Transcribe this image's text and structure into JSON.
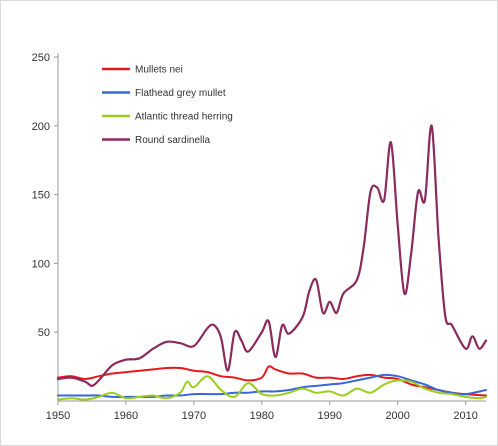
{
  "chart_data": {
    "type": "line",
    "title": "",
    "xlabel": "",
    "ylabel": "",
    "xlim": [
      1950,
      2013
    ],
    "ylim": [
      0,
      250
    ],
    "xticks": [
      1950,
      1960,
      1970,
      1980,
      1990,
      2000,
      2010
    ],
    "yticks": [
      50,
      100,
      150,
      200,
      250
    ],
    "grid": false,
    "legend_position": "top-left",
    "series": [
      {
        "name": "Mullets nei",
        "color": "#e8191e",
        "x": [
          1950,
          1952,
          1954,
          1956,
          1958,
          1960,
          1962,
          1964,
          1966,
          1968,
          1970,
          1972,
          1974,
          1976,
          1978,
          1980,
          1981,
          1982,
          1984,
          1986,
          1988,
          1990,
          1992,
          1994,
          1996,
          1998,
          2000,
          2002,
          2004,
          2006,
          2008,
          2010,
          2013
        ],
        "y": [
          17,
          18,
          16,
          18,
          20,
          21,
          22,
          23,
          24,
          24,
          22,
          21,
          18,
          17,
          15,
          17,
          25,
          23,
          20,
          20,
          17,
          17,
          16,
          18,
          19,
          17,
          16,
          12,
          10,
          8,
          6,
          5,
          4
        ]
      },
      {
        "name": "Flathead grey mullet",
        "color": "#3a66d8",
        "x": [
          1950,
          1952,
          1954,
          1956,
          1958,
          1960,
          1962,
          1964,
          1966,
          1968,
          1970,
          1972,
          1974,
          1976,
          1978,
          1980,
          1982,
          1984,
          1986,
          1988,
          1990,
          1992,
          1994,
          1996,
          1998,
          2000,
          2002,
          2004,
          2006,
          2008,
          2010,
          2013
        ],
        "y": [
          4,
          4,
          4,
          4,
          3,
          3,
          3,
          3,
          4,
          4,
          5,
          5,
          5,
          6,
          6,
          7,
          7,
          8,
          10,
          11,
          12,
          13,
          15,
          17,
          19,
          18,
          15,
          12,
          8,
          6,
          5,
          8
        ]
      },
      {
        "name": "Atlantic thread herring",
        "color": "#9acd1e",
        "x": [
          1950,
          1952,
          1954,
          1956,
          1958,
          1960,
          1962,
          1964,
          1966,
          1968,
          1969,
          1970,
          1972,
          1974,
          1976,
          1978,
          1980,
          1982,
          1984,
          1986,
          1988,
          1990,
          1992,
          1994,
          1996,
          1998,
          2000,
          2002,
          2004,
          2006,
          2008,
          2010,
          2012,
          2013
        ],
        "y": [
          1,
          2,
          1,
          3,
          6,
          2,
          3,
          4,
          2,
          6,
          14,
          10,
          18,
          8,
          3,
          13,
          5,
          4,
          6,
          9,
          6,
          7,
          4,
          9,
          6,
          12,
          15,
          14,
          9,
          6,
          5,
          3,
          2,
          3
        ]
      },
      {
        "name": "Round sardinella",
        "color": "#8c2a5e",
        "x": [
          1950,
          1952,
          1954,
          1955,
          1956,
          1958,
          1960,
          1962,
          1964,
          1966,
          1968,
          1970,
          1972,
          1973,
          1974,
          1975,
          1976,
          1977,
          1978,
          1980,
          1981,
          1982,
          1983,
          1984,
          1986,
          1987,
          1988,
          1989,
          1990,
          1991,
          1992,
          1994,
          1995,
          1996,
          1997,
          1998,
          1999,
          2000,
          2001,
          2002,
          2003,
          2004,
          2005,
          2006,
          2007,
          2008,
          2010,
          2011,
          2012,
          2013
        ],
        "y": [
          16,
          17,
          14,
          11,
          15,
          26,
          30,
          31,
          38,
          43,
          42,
          40,
          53,
          55,
          46,
          22,
          50,
          44,
          36,
          50,
          58,
          32,
          55,
          49,
          61,
          80,
          88,
          64,
          72,
          64,
          78,
          88,
          112,
          152,
          155,
          146,
          188,
          128,
          78,
          108,
          152,
          146,
          200,
          120,
          62,
          55,
          38,
          47,
          38,
          44
        ]
      }
    ]
  }
}
